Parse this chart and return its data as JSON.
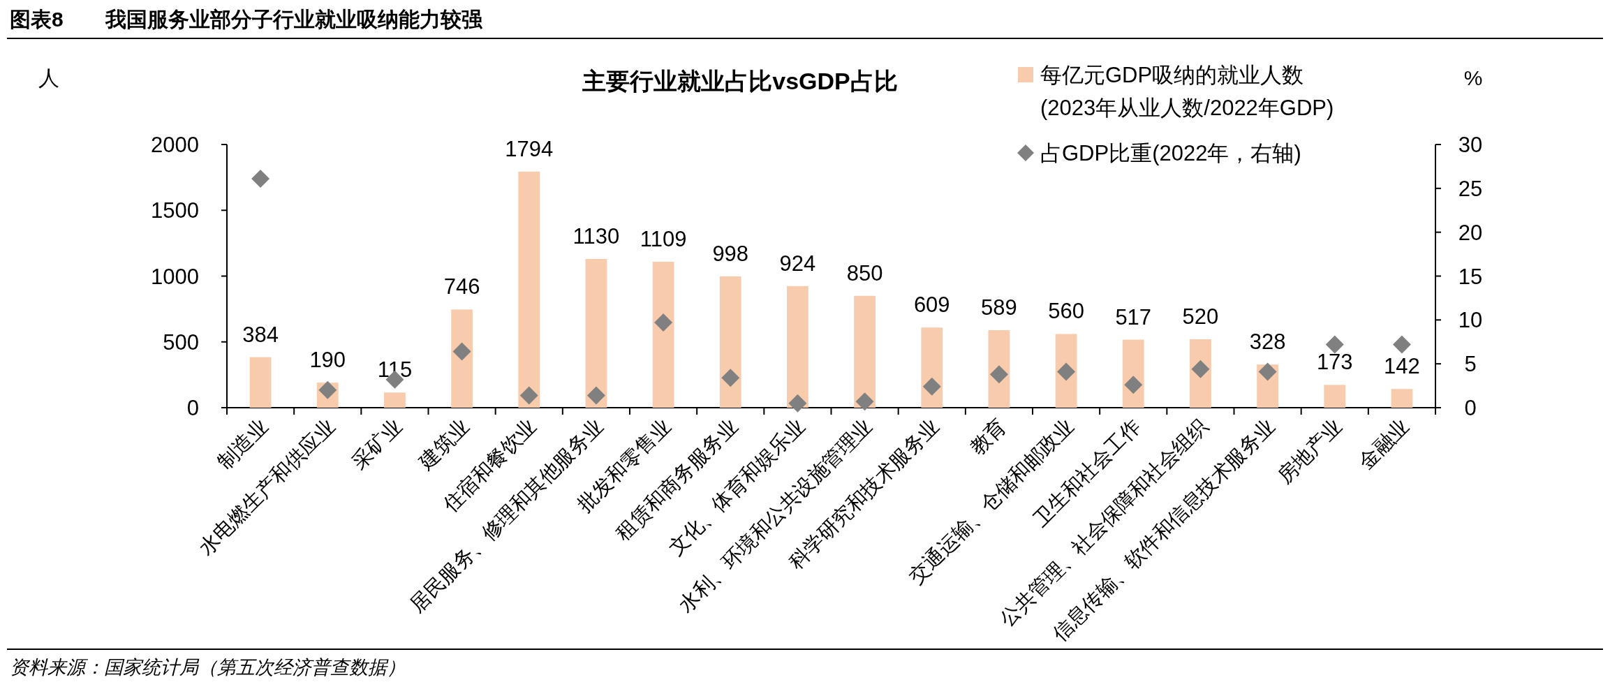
{
  "chart_data": {
    "type": "bar",
    "title": "图表8　　我国服务业部分子行业就业吸纳能力较强",
    "subtitle": "主要行业就业占比vsGDP占比",
    "ylabel": "人",
    "y2label": "%",
    "categories": [
      "制造业",
      "水电燃生产和供应业",
      "采矿业",
      "建筑业",
      "住宿和餐饮业",
      "居民服务、修理和其他服务业",
      "批发和零售业",
      "租赁和商务服务业",
      "文化、体育和娱乐业",
      "水利、环境和公共设施管理业",
      "科学研究和技术服务业",
      "教育",
      "交通运输、仓储和邮政业",
      "卫生和社会工作",
      "公共管理、社会保障和社会组织",
      "信息传输、软件和信息技术服务业",
      "房地产业",
      "金融业"
    ],
    "series": [
      {
        "name": "每亿元GDP吸纳的就业人数\n(2023年从业人数/2022年GDP)",
        "color": "#f8cbad",
        "values": [
          384,
          190,
          115,
          746,
          1794,
          1130,
          1109,
          998,
          924,
          850,
          609,
          589,
          560,
          517,
          520,
          328,
          173,
          142
        ],
        "value_labels": [
          "384",
          "190",
          "115",
          "746",
          "1794",
          "1130",
          "1109",
          "998",
          "924",
          "850",
          "609",
          "589",
          "560",
          "517",
          "520",
          "328",
          "173",
          "142"
        ]
      },
      {
        "name": "占GDP比重(2022年，右轴)",
        "type": "scatter",
        "axis": "y2",
        "marker": "diamond",
        "color": "#808080",
        "values": [
          26.1,
          2.0,
          3.2,
          6.4,
          1.4,
          1.4,
          9.7,
          3.4,
          0.5,
          0.7,
          2.4,
          3.8,
          4.1,
          2.6,
          4.4,
          4.1,
          7.2,
          7.2
        ]
      }
    ],
    "ylim": [
      0,
      2000
    ],
    "yticks": [
      0,
      500,
      1000,
      1500,
      2000
    ],
    "y2lim": [
      0,
      30
    ],
    "y2ticks": [
      0,
      5,
      10,
      15,
      20,
      25,
      30
    ],
    "grid": false,
    "legend": "top right",
    "annotations": [
      "资料来源：国家统计局（第五次经济普查数据）"
    ]
  }
}
